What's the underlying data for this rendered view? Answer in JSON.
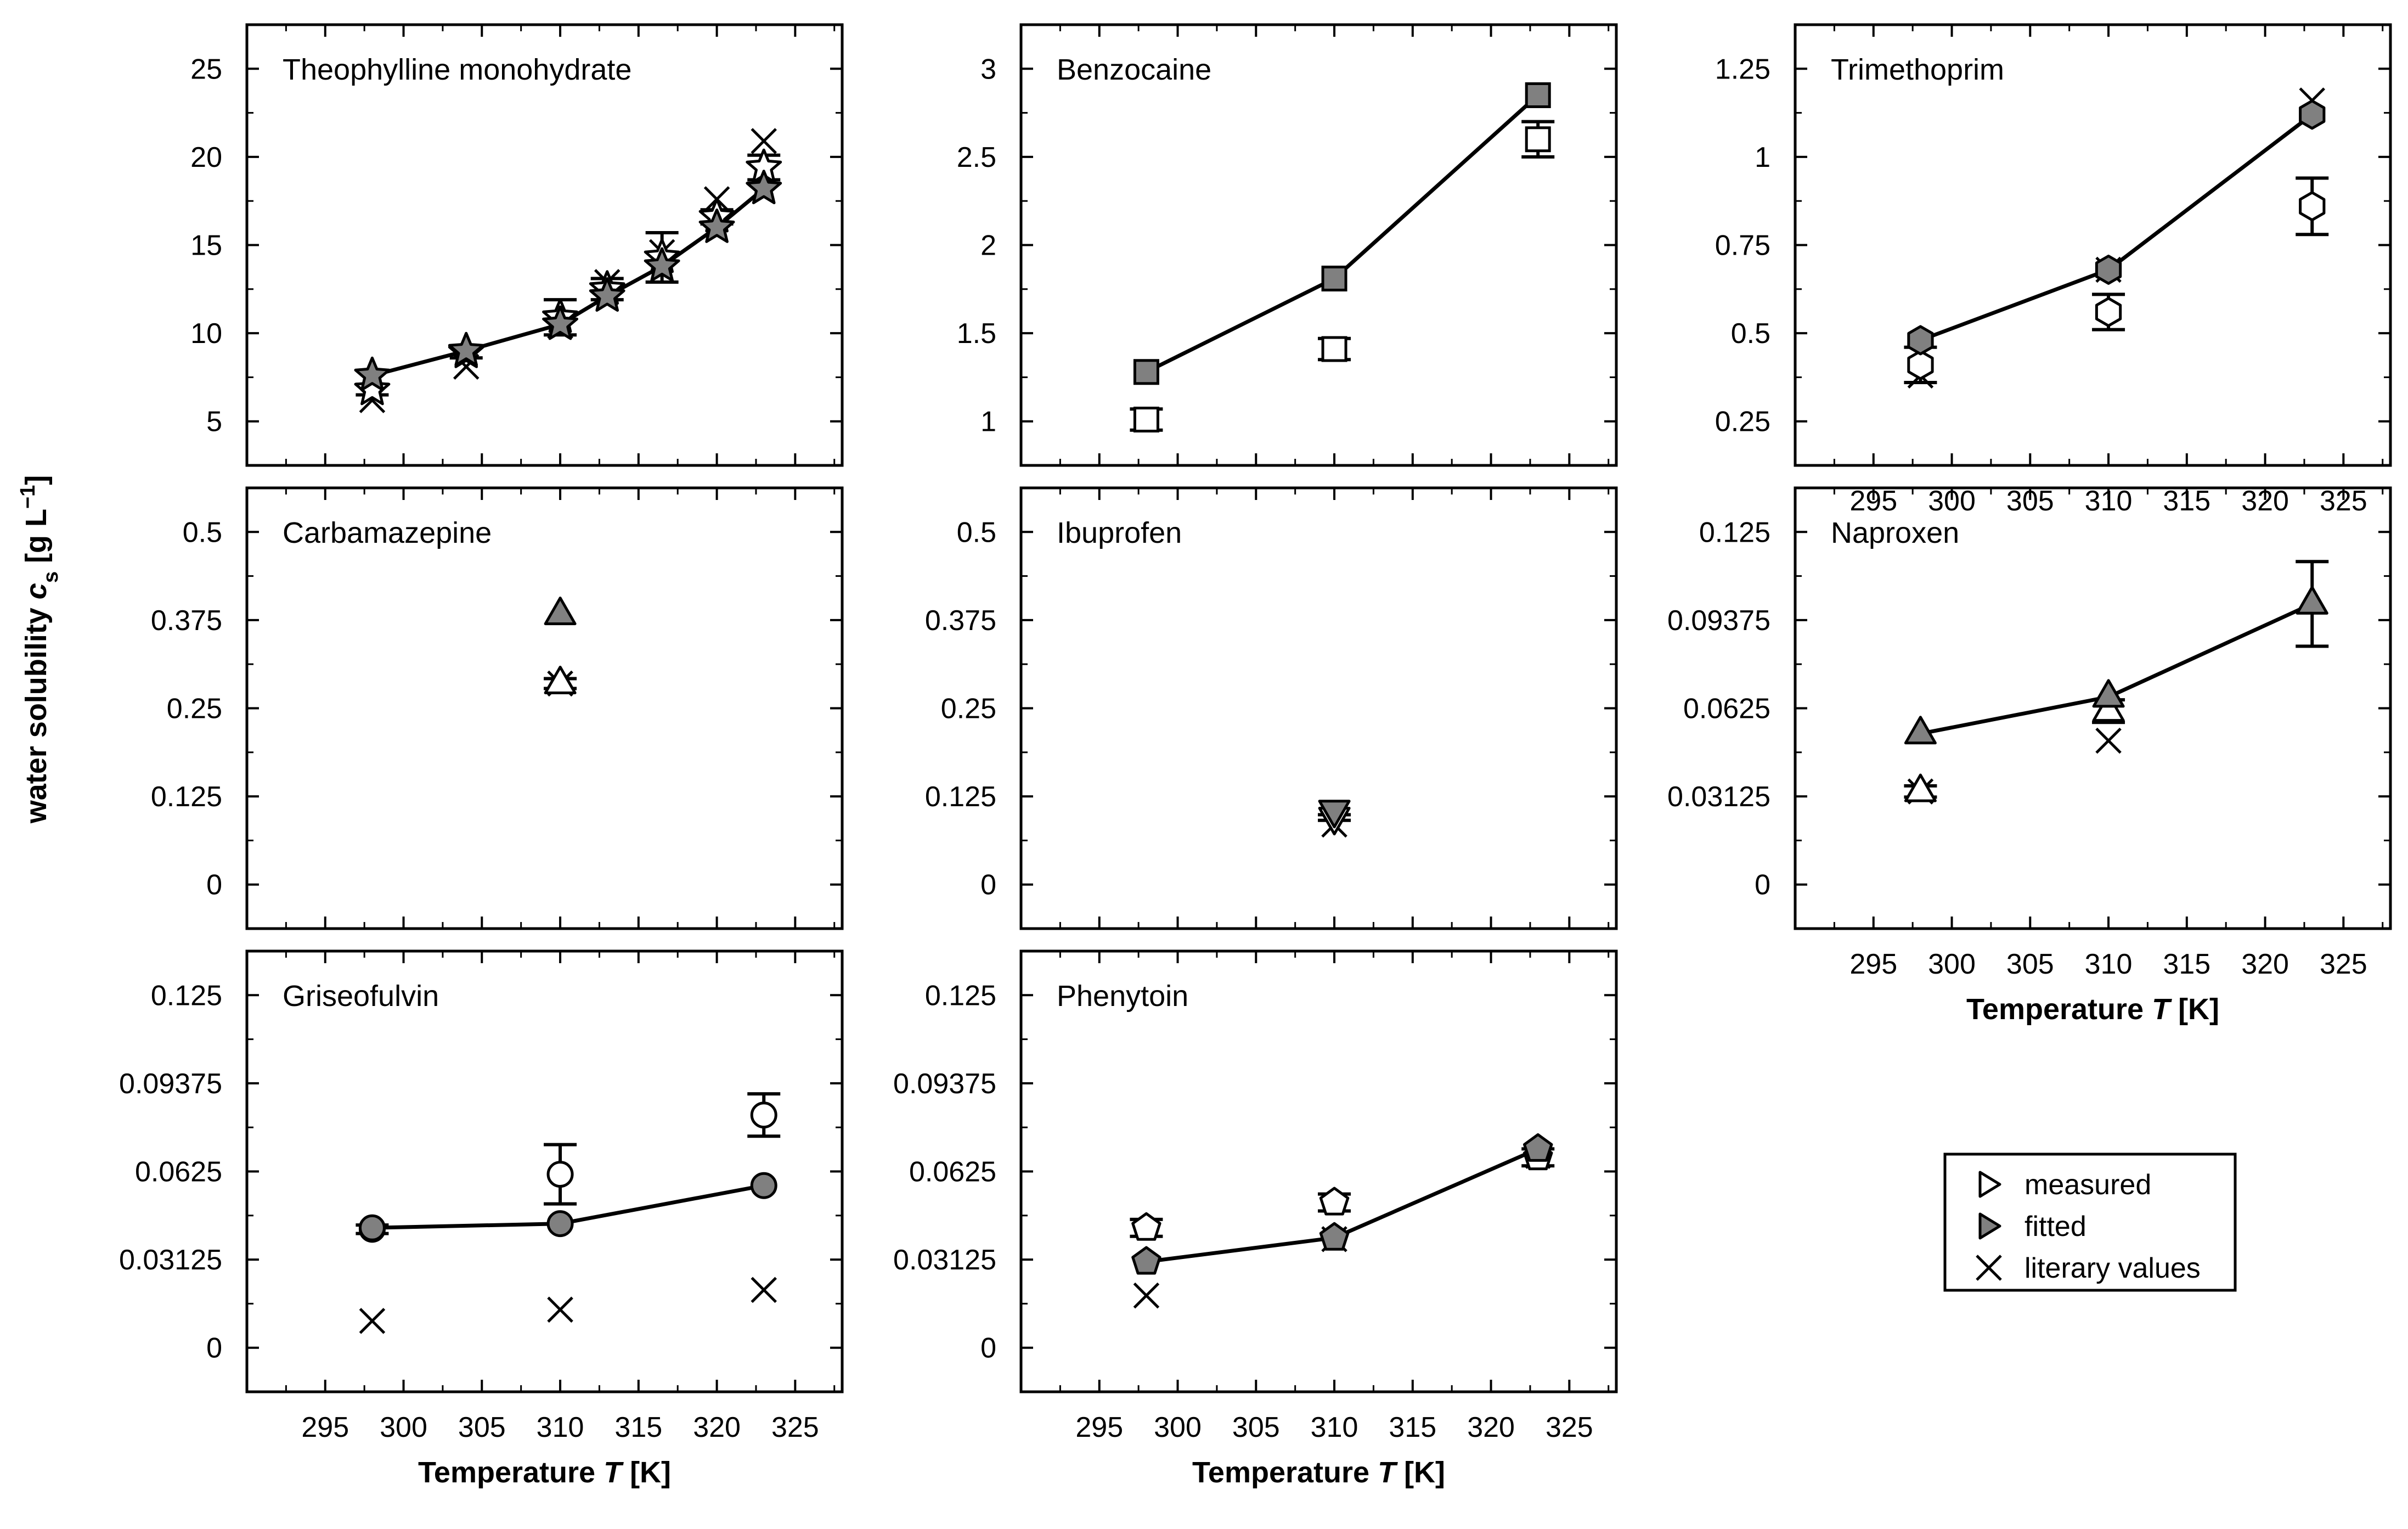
{
  "figure": {
    "ylabel_main": "water solubility ",
    "ylabel_italic": "c",
    "ylabel_sub": "s",
    "ylabel_unit": " [g L",
    "ylabel_sup": "−1",
    "ylabel_close": "]",
    "xlabel_main": "Temperature ",
    "xlabel_italic": "T",
    "xlabel_unit": " [K]",
    "legend": [
      {
        "marker": "measured",
        "label": "measured"
      },
      {
        "marker": "fitted",
        "label": "fitted"
      },
      {
        "marker": "literary",
        "label": "literary values"
      }
    ],
    "colors": {
      "fitted_fill": "#808080",
      "line": "#000000",
      "measured_fill": "#ffffff"
    }
  },
  "chart_data": [
    {
      "type": "scatter",
      "title": "Theophylline monohydrate",
      "marker": "star",
      "xlim": [
        290,
        328
      ],
      "xticks": [
        295,
        300,
        305,
        310,
        315,
        320,
        325
      ],
      "ylim": [
        2.5,
        27.5
      ],
      "yticks": [
        5,
        10,
        15,
        20,
        25
      ],
      "ytick_labels": [
        "5",
        "10",
        "15",
        "20",
        "25"
      ],
      "fitted_line": [
        [
          298,
          7.6
        ],
        [
          304,
          9.0
        ],
        [
          310,
          10.5
        ],
        [
          313,
          12.1
        ],
        [
          316.5,
          13.8
        ],
        [
          320,
          16.0
        ],
        [
          323,
          18.2
        ]
      ],
      "measured": [
        [
          298,
          6.8,
          0.3
        ],
        [
          304,
          8.9,
          0.3
        ],
        [
          310,
          10.9,
          1.0
        ],
        [
          313,
          12.5,
          0.6
        ],
        [
          316.5,
          14.3,
          1.4
        ],
        [
          320,
          16.6,
          0.4
        ],
        [
          323,
          19.4,
          0.7
        ]
      ],
      "literature": [
        [
          298,
          6.2
        ],
        [
          304,
          8.1
        ],
        [
          310,
          10.4
        ],
        [
          313,
          12.9
        ],
        [
          316.5,
          14.6
        ],
        [
          320,
          17.6
        ],
        [
          323,
          20.9
        ]
      ],
      "xticks_visible": false
    },
    {
      "type": "scatter",
      "title": "Benzocaine",
      "marker": "square",
      "xlim": [
        290,
        328
      ],
      "xticks": [
        295,
        300,
        305,
        310,
        315,
        320,
        325
      ],
      "ylim": [
        0.75,
        3.25
      ],
      "yticks": [
        1,
        1.5,
        2,
        2.5,
        3
      ],
      "ytick_labels": [
        "1",
        "1.5",
        "2",
        "2.5",
        "3"
      ],
      "fitted_line": [
        [
          298,
          1.28
        ],
        [
          310,
          1.81
        ],
        [
          323,
          2.85
        ]
      ],
      "measured": [
        [
          298,
          1.01,
          0.06
        ],
        [
          310,
          1.41,
          0.06
        ],
        [
          323,
          2.6,
          0.1
        ]
      ],
      "literature": [],
      "xticks_visible": false
    },
    {
      "type": "scatter",
      "title": "Trimethoprim",
      "marker": "hexagon",
      "xlim": [
        290,
        328
      ],
      "xticks": [
        295,
        300,
        305,
        310,
        315,
        320,
        325
      ],
      "ylim": [
        0.125,
        1.375
      ],
      "yticks": [
        0.25,
        0.5,
        0.75,
        1,
        1.25
      ],
      "ytick_labels": [
        "0.25",
        "0.5",
        "0.75",
        "1",
        "1.25"
      ],
      "fitted_line": [
        [
          298,
          0.48
        ],
        [
          310,
          0.68
        ],
        [
          323,
          1.12
        ]
      ],
      "measured": [
        [
          298,
          0.41,
          0.05
        ],
        [
          310,
          0.56,
          0.05
        ],
        [
          323,
          0.86,
          0.08
        ]
      ],
      "literature": [
        [
          298,
          0.38
        ],
        [
          310,
          0.68
        ],
        [
          323,
          1.16
        ]
      ],
      "xticks_visible": true
    },
    {
      "type": "scatter",
      "title": "Carbamazepine",
      "marker": "triangle",
      "xlim": [
        290,
        328
      ],
      "xticks": [
        295,
        300,
        305,
        310,
        315,
        320,
        325
      ],
      "ylim": [
        -0.0625,
        0.5625
      ],
      "yticks": [
        0,
        0.125,
        0.25,
        0.375,
        0.5
      ],
      "ytick_labels": [
        "0",
        "0.125",
        "0.25",
        "0.375",
        "0.5"
      ],
      "fitted_line": [
        [
          310,
          0.383
        ]
      ],
      "measured": [
        [
          310,
          0.285,
          0.007
        ]
      ],
      "literature": [
        [
          310,
          0.285
        ]
      ],
      "xticks_visible": false
    },
    {
      "type": "scatter",
      "title": "Ibuprofen",
      "marker": "triangle-down",
      "xlim": [
        290,
        328
      ],
      "xticks": [
        295,
        300,
        305,
        310,
        315,
        320,
        325
      ],
      "ylim": [
        -0.0625,
        0.5625
      ],
      "yticks": [
        0,
        0.125,
        0.25,
        0.375,
        0.5
      ],
      "ytick_labels": [
        "0",
        "0.125",
        "0.25",
        "0.375",
        "0.5"
      ],
      "fitted_line": [
        [
          310,
          0.105
        ]
      ],
      "measured": [
        [
          310,
          0.095,
          0.004
        ]
      ],
      "literature": [
        [
          310,
          0.085
        ]
      ],
      "xticks_visible": false
    },
    {
      "type": "scatter",
      "title": "Naproxen",
      "marker": "triangle",
      "xlim": [
        290,
        328
      ],
      "xticks": [
        295,
        300,
        305,
        310,
        315,
        320,
        325
      ],
      "ylim": [
        -0.015625,
        0.140625
      ],
      "yticks": [
        0,
        0.03125,
        0.0625,
        0.09375,
        0.125
      ],
      "ytick_labels": [
        "0",
        "0.03125",
        "0.0625",
        "0.09375",
        "0.125"
      ],
      "fitted_line": [
        [
          298,
          0.0535
        ],
        [
          310,
          0.0665
        ],
        [
          323,
          0.0995
        ]
      ],
      "measured": [
        [
          298,
          0.033,
          0.002
        ],
        [
          310,
          0.0615,
          0.004
        ],
        [
          323,
          0.0995,
          0.015
        ]
      ],
      "literature": [
        [
          298,
          0.033
        ],
        [
          310,
          0.051
        ]
      ],
      "xticks_visible": true
    },
    {
      "type": "scatter",
      "title": "Griseofulvin",
      "marker": "circle",
      "xlim": [
        290,
        328
      ],
      "xticks": [
        295,
        300,
        305,
        310,
        315,
        320,
        325
      ],
      "ylim": [
        -0.015625,
        0.140625
      ],
      "yticks": [
        0,
        0.03125,
        0.0625,
        0.09375,
        0.125
      ],
      "ytick_labels": [
        "0",
        "0.03125",
        "0.0625",
        "0.09375",
        "0.125"
      ],
      "fitted_line": [
        [
          298,
          0.0425
        ],
        [
          310,
          0.044
        ],
        [
          323,
          0.0575
        ]
      ],
      "measured": [
        [
          298,
          0.042,
          0.0015
        ],
        [
          310,
          0.0615,
          0.0105
        ],
        [
          323,
          0.0825,
          0.0075
        ]
      ],
      "literature": [
        [
          298,
          0.0095
        ],
        [
          310,
          0.0135
        ],
        [
          323,
          0.0205
        ]
      ],
      "xticks_visible": true
    },
    {
      "type": "scatter",
      "title": "Phenytoin",
      "marker": "pentagon",
      "xlim": [
        290,
        328
      ],
      "xticks": [
        295,
        300,
        305,
        310,
        315,
        320,
        325
      ],
      "ylim": [
        -0.015625,
        0.140625
      ],
      "yticks": [
        0,
        0.03125,
        0.0625,
        0.09375,
        0.125
      ],
      "ytick_labels": [
        "0",
        "0.03125",
        "0.0625",
        "0.09375",
        "0.125"
      ],
      "fitted_line": [
        [
          298,
          0.0305
        ],
        [
          310,
          0.039
        ],
        [
          323,
          0.0705
        ]
      ],
      "measured": [
        [
          298,
          0.0425,
          0.003
        ],
        [
          310,
          0.0515,
          0.003
        ],
        [
          323,
          0.0675,
          0.003
        ]
      ],
      "literature": [
        [
          298,
          0.0185
        ],
        [
          310,
          0.0385
        ],
        [
          323,
          0.068
        ]
      ],
      "xticks_visible": true
    }
  ]
}
